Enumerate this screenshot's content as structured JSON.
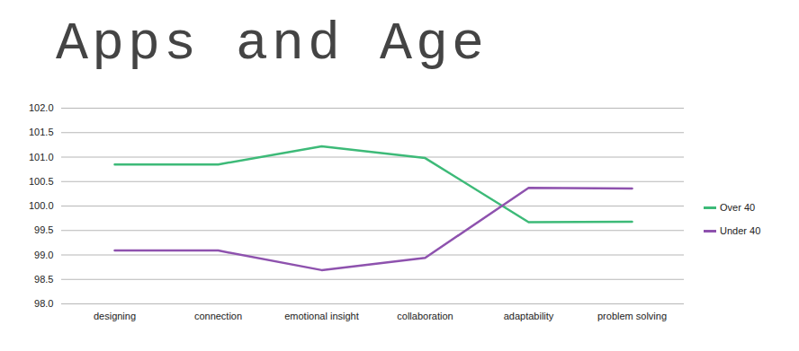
{
  "chart_data": {
    "type": "line",
    "title": "Apps and Age",
    "categories": [
      "designing",
      "connection",
      "emotional insight",
      "collaboration",
      "adaptability",
      "problem solving"
    ],
    "series": [
      {
        "name": "Over 40",
        "color": "#3dba78",
        "values": [
          100.85,
          100.85,
          101.22,
          100.98,
          99.67,
          99.68
        ]
      },
      {
        "name": "Under 40",
        "color": "#8e52ae",
        "values": [
          99.09,
          99.09,
          98.69,
          98.94,
          100.37,
          100.36
        ]
      }
    ],
    "ylim": [
      98,
      102
    ],
    "yticks": [
      98,
      98.5,
      99,
      99.5,
      100,
      100.5,
      101,
      101.5,
      102
    ],
    "grid": true,
    "legend": "right"
  }
}
